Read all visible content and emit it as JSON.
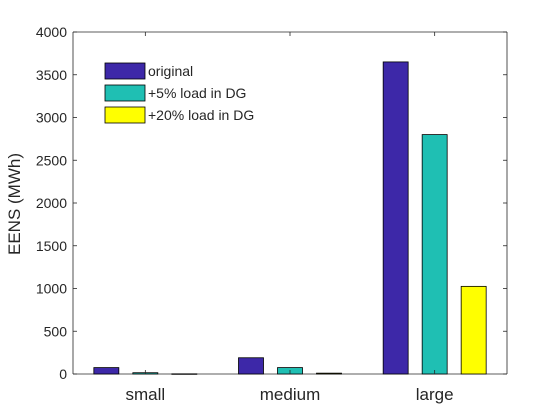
{
  "chart_data": {
    "type": "bar",
    "title": "",
    "xlabel": "",
    "ylabel": "EENS (MWh)",
    "ylim": [
      0,
      4000
    ],
    "yticks": [
      0,
      500,
      1000,
      1500,
      2000,
      2500,
      3000,
      3500,
      4000
    ],
    "categories": [
      "small",
      "medium",
      "large"
    ],
    "grid": false,
    "legend_position": "top-left",
    "series": [
      {
        "name": "original",
        "color": "#3d28a8",
        "values": [
          75,
          190,
          3650
        ]
      },
      {
        "name": "+5% load in DG",
        "color": "#1fbfb3",
        "values": [
          15,
          75,
          2800
        ]
      },
      {
        "name": "+20% load in DG",
        "color": "#ffff00",
        "values": [
          2,
          10,
          1025
        ]
      }
    ]
  }
}
